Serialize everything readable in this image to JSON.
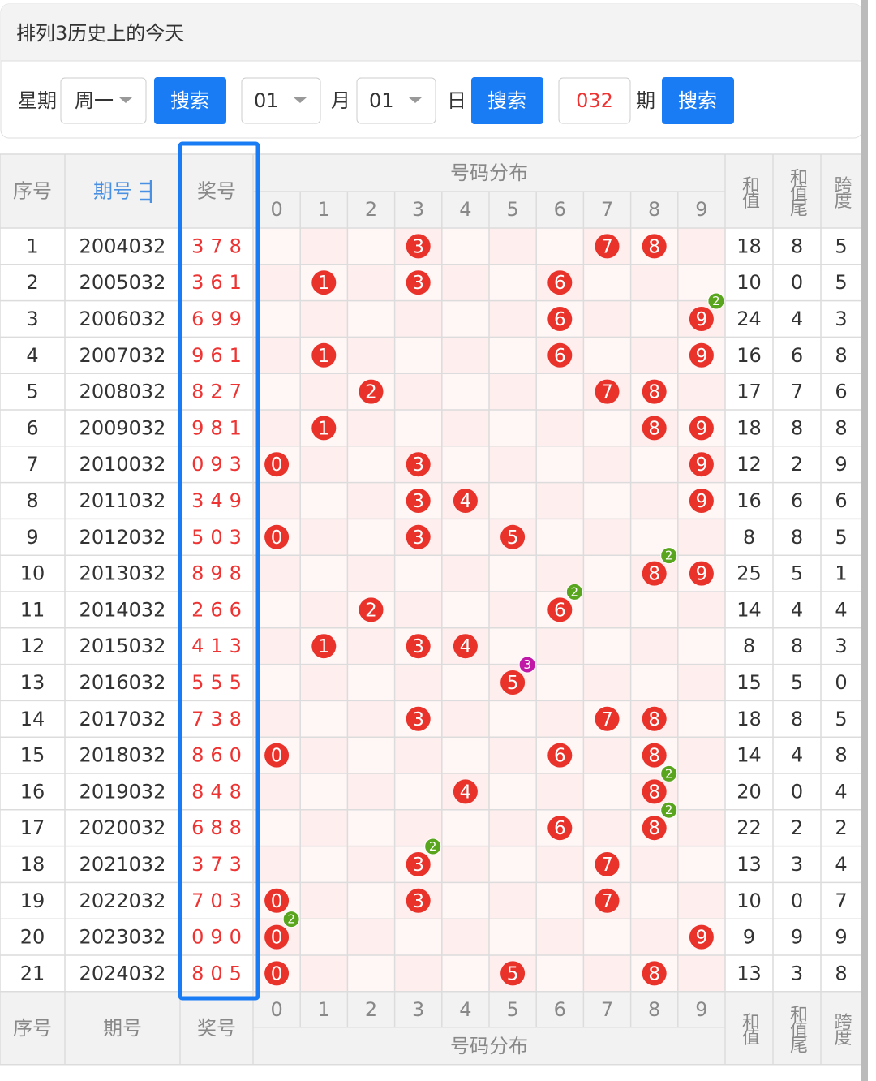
{
  "header": {
    "title": "排列3历史上的今天"
  },
  "filters": {
    "weekday_label": "星期",
    "weekday": "周一",
    "search1": "搜索",
    "month": "01",
    "month_label": "月",
    "day": "01",
    "day_label": "日",
    "search2": "搜索",
    "issue": "032",
    "issue_label": "期",
    "search3": "搜索"
  },
  "table": {
    "columns": {
      "no": "序号",
      "issue": "期号",
      "draw": "奖号",
      "dist": "号码分布",
      "digits": [
        "0",
        "1",
        "2",
        "3",
        "4",
        "5",
        "6",
        "7",
        "8",
        "9"
      ],
      "sum": "和值",
      "tail": "和值尾",
      "span": "跨度"
    },
    "badge_colors": {
      "2": "#5aa51e",
      "3": "#c218a8"
    },
    "rows": [
      {
        "no": "1",
        "issue": "2004032",
        "draw": "378",
        "balls": [
          {
            "n": "3"
          },
          {
            "n": "7"
          },
          {
            "n": "8"
          }
        ],
        "sum": "18",
        "tail": "8",
        "span": "5"
      },
      {
        "no": "2",
        "issue": "2005032",
        "draw": "361",
        "balls": [
          {
            "n": "1"
          },
          {
            "n": "3"
          },
          {
            "n": "6"
          }
        ],
        "sum": "10",
        "tail": "0",
        "span": "5"
      },
      {
        "no": "3",
        "issue": "2006032",
        "draw": "699",
        "balls": [
          {
            "n": "6"
          },
          {
            "n": "9",
            "repeat": "2"
          }
        ],
        "sum": "24",
        "tail": "4",
        "span": "3"
      },
      {
        "no": "4",
        "issue": "2007032",
        "draw": "961",
        "balls": [
          {
            "n": "1"
          },
          {
            "n": "6"
          },
          {
            "n": "9"
          }
        ],
        "sum": "16",
        "tail": "6",
        "span": "8"
      },
      {
        "no": "5",
        "issue": "2008032",
        "draw": "827",
        "balls": [
          {
            "n": "2"
          },
          {
            "n": "7"
          },
          {
            "n": "8"
          }
        ],
        "sum": "17",
        "tail": "7",
        "span": "6"
      },
      {
        "no": "6",
        "issue": "2009032",
        "draw": "981",
        "balls": [
          {
            "n": "1"
          },
          {
            "n": "8"
          },
          {
            "n": "9"
          }
        ],
        "sum": "18",
        "tail": "8",
        "span": "8"
      },
      {
        "no": "7",
        "issue": "2010032",
        "draw": "093",
        "balls": [
          {
            "n": "0"
          },
          {
            "n": "3"
          },
          {
            "n": "9"
          }
        ],
        "sum": "12",
        "tail": "2",
        "span": "9"
      },
      {
        "no": "8",
        "issue": "2011032",
        "draw": "349",
        "balls": [
          {
            "n": "3"
          },
          {
            "n": "4"
          },
          {
            "n": "9"
          }
        ],
        "sum": "16",
        "tail": "6",
        "span": "6"
      },
      {
        "no": "9",
        "issue": "2012032",
        "draw": "503",
        "balls": [
          {
            "n": "0"
          },
          {
            "n": "3"
          },
          {
            "n": "5"
          }
        ],
        "sum": "8",
        "tail": "8",
        "span": "5"
      },
      {
        "no": "10",
        "issue": "2013032",
        "draw": "898",
        "balls": [
          {
            "n": "8",
            "repeat": "2"
          },
          {
            "n": "9"
          }
        ],
        "sum": "25",
        "tail": "5",
        "span": "1"
      },
      {
        "no": "11",
        "issue": "2014032",
        "draw": "266",
        "balls": [
          {
            "n": "2"
          },
          {
            "n": "6",
            "repeat": "2"
          }
        ],
        "sum": "14",
        "tail": "4",
        "span": "4"
      },
      {
        "no": "12",
        "issue": "2015032",
        "draw": "413",
        "balls": [
          {
            "n": "1"
          },
          {
            "n": "3"
          },
          {
            "n": "4"
          }
        ],
        "sum": "8",
        "tail": "8",
        "span": "3"
      },
      {
        "no": "13",
        "issue": "2016032",
        "draw": "555",
        "balls": [
          {
            "n": "5",
            "repeat": "3"
          }
        ],
        "sum": "15",
        "tail": "5",
        "span": "0"
      },
      {
        "no": "14",
        "issue": "2017032",
        "draw": "738",
        "balls": [
          {
            "n": "3"
          },
          {
            "n": "7"
          },
          {
            "n": "8"
          }
        ],
        "sum": "18",
        "tail": "8",
        "span": "5"
      },
      {
        "no": "15",
        "issue": "2018032",
        "draw": "860",
        "balls": [
          {
            "n": "0"
          },
          {
            "n": "6"
          },
          {
            "n": "8"
          }
        ],
        "sum": "14",
        "tail": "4",
        "span": "8"
      },
      {
        "no": "16",
        "issue": "2019032",
        "draw": "848",
        "balls": [
          {
            "n": "4"
          },
          {
            "n": "8",
            "repeat": "2"
          }
        ],
        "sum": "20",
        "tail": "0",
        "span": "4"
      },
      {
        "no": "17",
        "issue": "2020032",
        "draw": "688",
        "balls": [
          {
            "n": "6"
          },
          {
            "n": "8",
            "repeat": "2"
          }
        ],
        "sum": "22",
        "tail": "2",
        "span": "2"
      },
      {
        "no": "18",
        "issue": "2021032",
        "draw": "373",
        "balls": [
          {
            "n": "3",
            "repeat": "2"
          },
          {
            "n": "7"
          }
        ],
        "sum": "13",
        "tail": "3",
        "span": "4"
      },
      {
        "no": "19",
        "issue": "2022032",
        "draw": "703",
        "balls": [
          {
            "n": "0"
          },
          {
            "n": "3"
          },
          {
            "n": "7"
          }
        ],
        "sum": "10",
        "tail": "0",
        "span": "7"
      },
      {
        "no": "20",
        "issue": "2023032",
        "draw": "090",
        "balls": [
          {
            "n": "0",
            "repeat": "2"
          },
          {
            "n": "9"
          }
        ],
        "sum": "9",
        "tail": "9",
        "span": "9"
      },
      {
        "no": "21",
        "issue": "2024032",
        "draw": "805",
        "balls": [
          {
            "n": "0"
          },
          {
            "n": "5"
          },
          {
            "n": "8"
          }
        ],
        "sum": "13",
        "tail": "3",
        "span": "8"
      }
    ]
  }
}
